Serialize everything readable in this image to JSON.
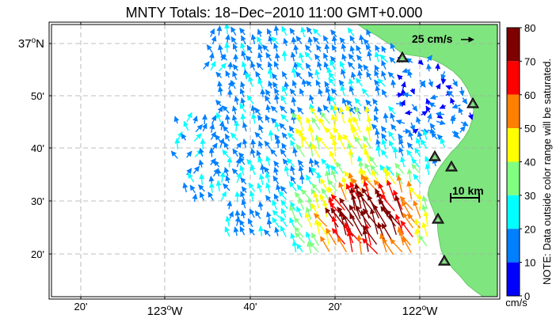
{
  "title": "MNTY Totals: 18−Dec−2010 11:00 GMT+0.000",
  "lat_labels": [
    {
      "deg": "37",
      "sup": "o",
      "hem": "N"
    },
    {
      "text": "50'"
    },
    {
      "text": "40'"
    },
    {
      "text": "30'"
    },
    {
      "text": "20'"
    }
  ],
  "lon_labels": [
    {
      "text": "20'"
    },
    {
      "deg": "123",
      "sup": "o",
      "hem": "W"
    },
    {
      "text": "40'"
    },
    {
      "text": "20'"
    },
    {
      "deg": "122",
      "sup": "o",
      "hem": "W"
    }
  ],
  "colorbar": {
    "ticks": [
      "80",
      "70",
      "60",
      "50",
      "40",
      "30",
      "20",
      "10",
      "0"
    ],
    "colors": [
      "#7f0000",
      "#ff0000",
      "#ff8000",
      "#ffff00",
      "#80ff80",
      "#00ffff",
      "#0080ff",
      "#0000ff"
    ],
    "unit": "cm/s",
    "note": "NOTE: Data outside color range will be saturated."
  },
  "scale_arrow_label": "25 cm/s",
  "scale_bar_label": "10 km",
  "colors": {
    "land": "#7fe57f",
    "station": "#222222",
    "grid": "#aaaaaa"
  }
}
